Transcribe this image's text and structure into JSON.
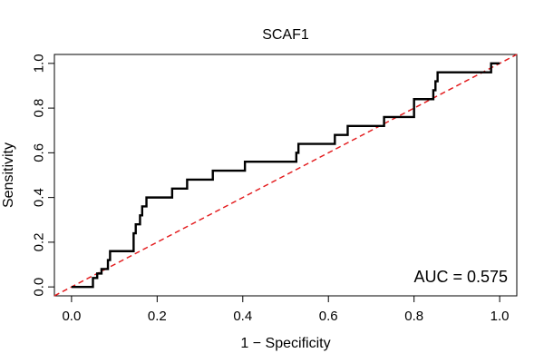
{
  "chart_data": {
    "type": "line",
    "title": "SCAF1",
    "xlabel": "1 − Specificity",
    "ylabel": "Sensitivity",
    "xlim": [
      -0.04,
      1.04
    ],
    "ylim": [
      -0.04,
      1.04
    ],
    "x_ticks": [
      "0.0",
      "0.2",
      "0.4",
      "0.6",
      "0.8",
      "1.0"
    ],
    "y_ticks": [
      "0.0",
      "0.2",
      "0.4",
      "0.6",
      "0.8",
      "1.0"
    ],
    "grid": false,
    "series": [
      {
        "color": "#000000",
        "style": "solid-step",
        "x": [
          0.0,
          0.05,
          0.05,
          0.06,
          0.06,
          0.07,
          0.07,
          0.085,
          0.085,
          0.09,
          0.09,
          0.145,
          0.145,
          0.15,
          0.15,
          0.16,
          0.16,
          0.165,
          0.165,
          0.175,
          0.175,
          0.185,
          0.185,
          0.235,
          0.235,
          0.27,
          0.27,
          0.33,
          0.33,
          0.405,
          0.405,
          0.525,
          0.525,
          0.53,
          0.53,
          0.54,
          0.54,
          0.615,
          0.615,
          0.645,
          0.645,
          0.73,
          0.73,
          0.8,
          0.8,
          0.845,
          0.845,
          0.85,
          0.85,
          0.855,
          0.855,
          0.98,
          0.98,
          1.0
        ],
        "y": [
          0.0,
          0.0,
          0.04,
          0.04,
          0.06,
          0.06,
          0.08,
          0.08,
          0.12,
          0.12,
          0.16,
          0.16,
          0.24,
          0.24,
          0.28,
          0.28,
          0.32,
          0.32,
          0.36,
          0.36,
          0.4,
          0.4,
          0.4,
          0.4,
          0.44,
          0.44,
          0.48,
          0.48,
          0.52,
          0.52,
          0.56,
          0.56,
          0.6,
          0.6,
          0.64,
          0.64,
          0.64,
          0.64,
          0.68,
          0.68,
          0.72,
          0.72,
          0.76,
          0.76,
          0.84,
          0.84,
          0.88,
          0.88,
          0.92,
          0.92,
          0.96,
          0.96,
          1.0,
          1.0
        ]
      },
      {
        "color": "#e31a1c",
        "style": "dashed",
        "x": [
          -0.04,
          1.04
        ],
        "y": [
          -0.04,
          1.04
        ]
      }
    ],
    "annotation": "AUC = 0.575"
  }
}
